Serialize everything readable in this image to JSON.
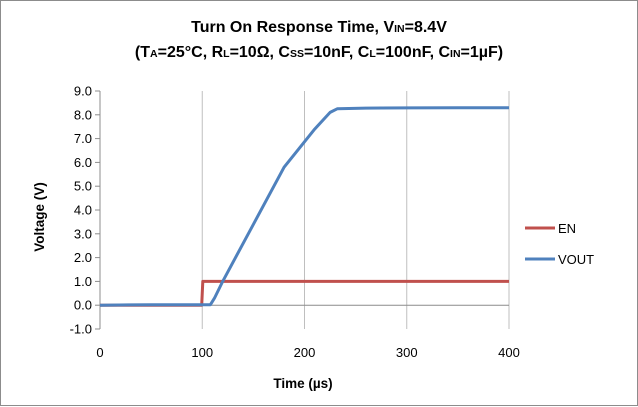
{
  "chart_data": {
    "type": "line",
    "title": {
      "line1": {
        "a": "Turn On Response Time,  V",
        "a_sub": "IN",
        "b": "=8.4V"
      },
      "line2": {
        "p0": "(T",
        "s0": "A",
        "p1": "=25°C, R",
        "s1": "L",
        "p2": "=10Ω, C",
        "s2": "SS",
        "p3": "=10nF, C",
        "s3": "L",
        "p4": "=100nF, C",
        "s4": "IN",
        "p5": "=1µF)"
      }
    },
    "xlabel": "Time (µs)",
    "ylabel": "Voltage (V)",
    "xlim": [
      0,
      400
    ],
    "ylim": [
      -1,
      9
    ],
    "xticks": [
      0,
      100,
      200,
      300,
      400
    ],
    "yticks": [
      -1,
      0,
      1,
      2,
      3,
      4,
      5,
      6,
      7,
      8,
      9
    ],
    "ytick_labels": [
      "-1.0",
      "0.0",
      "1.0",
      "2.0",
      "3.0",
      "4.0",
      "5.0",
      "6.0",
      "7.0",
      "8.0",
      "9.0"
    ],
    "grid": "vertical",
    "legend_position": "right",
    "series": [
      {
        "name": "EN",
        "color": "#c0504d",
        "points": [
          [
            0,
            0.0
          ],
          [
            99.5,
            0.0
          ],
          [
            100.5,
            1.0
          ],
          [
            400,
            1.0
          ]
        ]
      },
      {
        "name": "VOUT",
        "color": "#4f81bd",
        "points": [
          [
            0,
            0.0
          ],
          [
            50,
            0.02
          ],
          [
            108,
            0.02
          ],
          [
            112,
            0.3
          ],
          [
            120,
            1.0
          ],
          [
            150,
            3.4
          ],
          [
            180,
            5.8
          ],
          [
            210,
            7.4
          ],
          [
            225,
            8.1
          ],
          [
            232,
            8.25
          ],
          [
            260,
            8.28
          ],
          [
            300,
            8.29
          ],
          [
            350,
            8.3
          ],
          [
            400,
            8.3
          ]
        ]
      }
    ]
  }
}
